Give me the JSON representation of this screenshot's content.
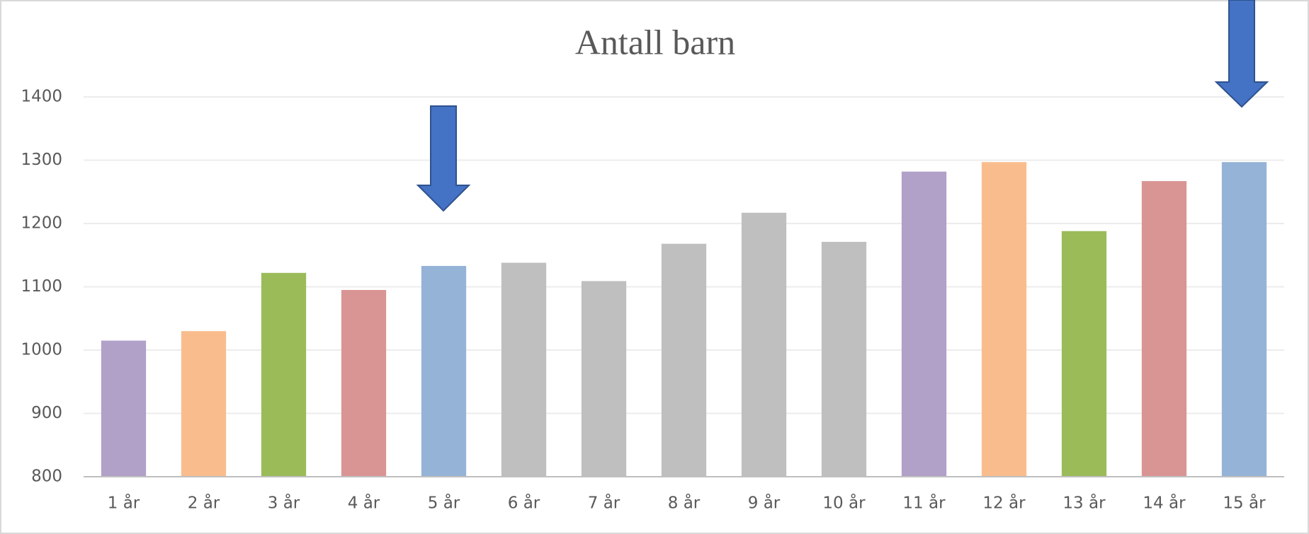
{
  "chart_data": {
    "type": "bar",
    "title": "Antall barn",
    "categories": [
      "1 år",
      "2 år",
      "3 år",
      "4 år",
      "5 år",
      "6 år",
      "7 år",
      "8 år",
      "9 år",
      "10 år",
      "11 år",
      "12 år",
      "13 år",
      "14 år",
      "15 år"
    ],
    "values": [
      1015,
      1030,
      1122,
      1095,
      1133,
      1138,
      1109,
      1168,
      1217,
      1171,
      1282,
      1297,
      1188,
      1267,
      1297
    ],
    "colors": [
      "#b1a0c7",
      "#f9bd8d",
      "#9bbb59",
      "#d99594",
      "#95b3d7",
      "#bfbfbf",
      "#bfbfbf",
      "#bfbfbf",
      "#bfbfbf",
      "#bfbfbf",
      "#b1a0c7",
      "#f9bd8d",
      "#9bbb59",
      "#d99594",
      "#95b3d7"
    ],
    "ylim": [
      800,
      1400
    ],
    "yticks": [
      800,
      900,
      1000,
      1100,
      1200,
      1300,
      1400
    ],
    "grid": true
  }
}
